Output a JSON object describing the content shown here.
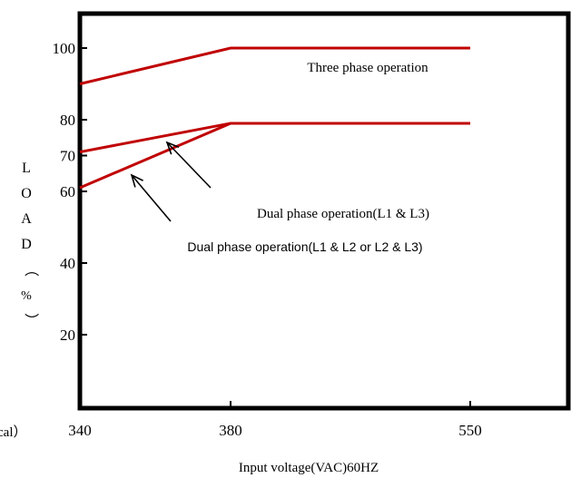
{
  "chart_data": {
    "type": "line",
    "title": "",
    "xlabel": "Input voltage(VAC)60HZ",
    "ylabel": "LOAD（%）",
    "ylabel_chars": [
      "L",
      "O",
      "A",
      "D",
      "（",
      "%",
      "）"
    ],
    "x_ticks": [
      "340",
      "380",
      "550"
    ],
    "x_positions": [
      340,
      380,
      550
    ],
    "y_ticks": [
      "100",
      "80",
      "70",
      "60",
      "40",
      "20"
    ],
    "y_tick_values": [
      100,
      80,
      70,
      60,
      40,
      20
    ],
    "ylim": [
      0,
      110
    ],
    "cut_label": "cal）",
    "grid": false,
    "series": [
      {
        "name": "Three phase operation",
        "x": [
          340,
          380,
          550
        ],
        "y": [
          90,
          100,
          100
        ]
      },
      {
        "name": "Dual phase operation(L1 & L3)",
        "x": [
          340,
          380,
          550
        ],
        "y": [
          71,
          79,
          79
        ]
      },
      {
        "name": "Dual phase operation(L1 & L2 or L2 & L3)",
        "x": [
          340,
          380,
          550
        ],
        "y": [
          61,
          79,
          79
        ]
      }
    ],
    "annotations": [
      "Three phase operation",
      "Dual phase operation(L1 & L3)",
      "Dual phase operation(L1 & L2 or L2 & L3)"
    ],
    "line_color": "#c00000"
  }
}
